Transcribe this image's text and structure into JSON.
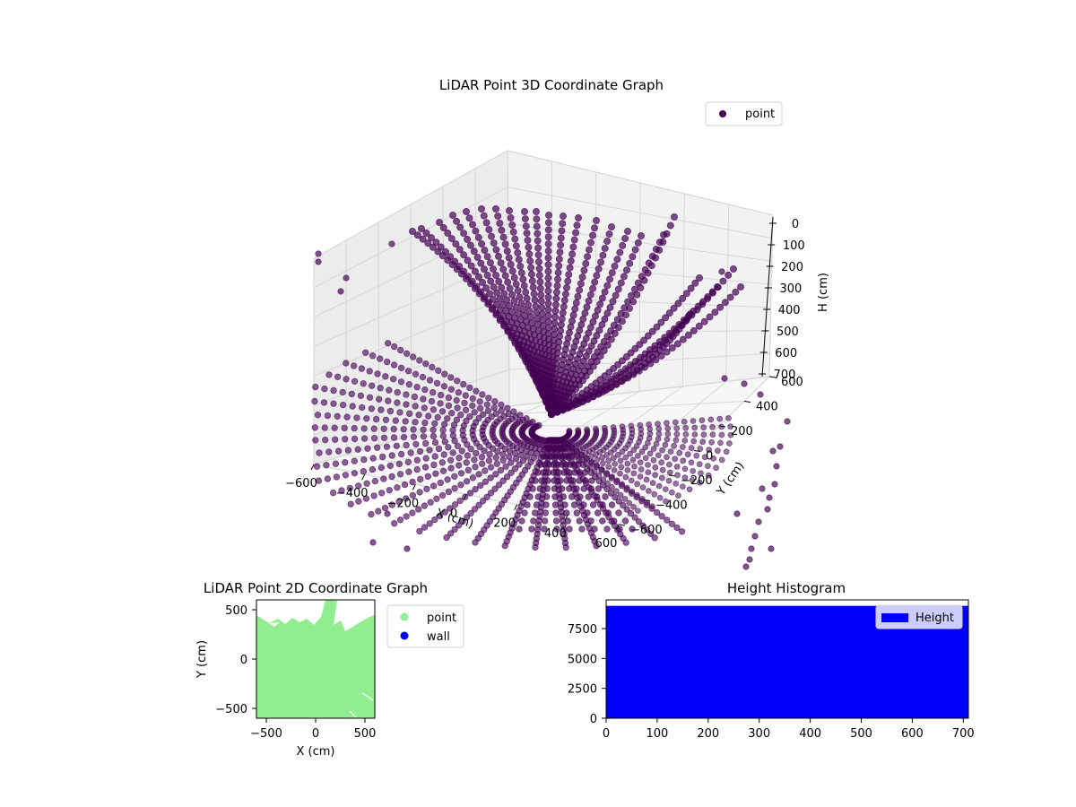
{
  "chart_data": [
    {
      "type": "scatter",
      "subtype": "3d",
      "title": "LiDAR Point 3D Coordinate Graph",
      "xlabel": "X (cm)",
      "ylabel": "Y (cm)",
      "zlabel": "H (cm)",
      "x_ticks": [
        "−600",
        "−400",
        "−200",
        "0",
        "200",
        "400",
        "600"
      ],
      "y_ticks": [
        "−600",
        "−400",
        "−200",
        "0",
        "200",
        "400",
        "600"
      ],
      "z_ticks": [
        "0",
        "100",
        "200",
        "300",
        "400",
        "500",
        "600",
        "700"
      ],
      "xlim": [
        -600,
        600
      ],
      "ylim": [
        -600,
        600
      ],
      "zlim": [
        0,
        700
      ],
      "z_inverted": true,
      "grid": true,
      "legend": {
        "placement": "upper right",
        "entries": [
          {
            "label": "point",
            "color": "#440154"
          }
        ]
      },
      "point_color": "#440154",
      "series": [
        {
          "name": "point",
          "description_of_structure": "radial fan of scan lines"
        }
      ]
    },
    {
      "type": "scatter",
      "title": "LiDAR Point 2D Coordinate Graph",
      "xlabel": "X (cm)",
      "ylabel": "Y (cm)",
      "x_ticks": [
        "−500",
        "0",
        "500"
      ],
      "y_ticks": [
        "−500",
        "0",
        "500"
      ],
      "xlim": [
        -600,
        600
      ],
      "ylim": [
        -600,
        600
      ],
      "legend": {
        "placement": "outside right",
        "entries": [
          {
            "label": "point",
            "color": "#90ee90"
          },
          {
            "label": "wall",
            "color": "#0000ff"
          }
        ]
      }
    },
    {
      "type": "bar",
      "subtype": "histogram",
      "title": "Height Histogram",
      "x_ticks": [
        "0",
        "100",
        "200",
        "300",
        "400",
        "500",
        "600",
        "700"
      ],
      "y_ticks": [
        "0",
        "2500",
        "5000",
        "7500"
      ],
      "xlim": [
        0,
        710
      ],
      "ylim": [
        0,
        9900
      ],
      "bins": [
        {
          "x0": 0,
          "x1": 710,
          "count": 9400
        }
      ],
      "legend": {
        "placement": "upper right",
        "entries": [
          {
            "label": "Height",
            "color": "#0000ff"
          }
        ]
      },
      "bar_color": "#0000ff"
    }
  ]
}
